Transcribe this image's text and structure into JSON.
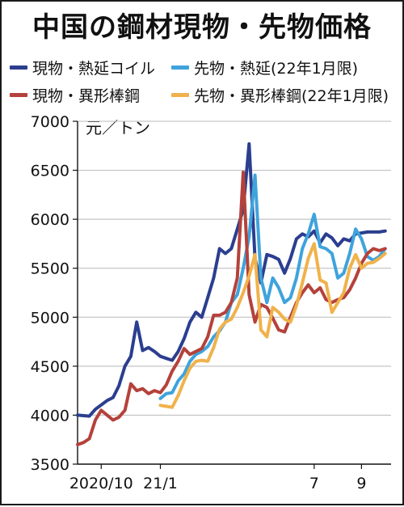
{
  "chart_data": {
    "type": "line",
    "title": "中国の鋼材現物・先物価格",
    "ylabel": "元／トン",
    "ylim": [
      3500,
      7000
    ],
    "yticks": [
      3500,
      4000,
      4500,
      5000,
      5500,
      6000,
      6500,
      7000
    ],
    "xlim": [
      0,
      53
    ],
    "xtick_labels": [
      {
        "x": 4,
        "label": "2020/10"
      },
      {
        "x": 14,
        "label": "21/1"
      },
      {
        "x": 40,
        "label": "7"
      },
      {
        "x": 48,
        "label": "9"
      }
    ],
    "grid": "horizontal",
    "legend": "top",
    "series": [
      {
        "name": "現物・熱延コイル",
        "color": "#2b3e8f",
        "x": [
          0,
          2,
          3,
          5,
          6,
          7,
          8,
          9,
          10,
          11,
          12,
          13,
          14,
          15,
          16,
          17,
          18,
          19,
          20,
          21,
          22,
          23,
          24,
          25,
          26,
          27,
          28,
          29,
          30,
          31,
          32,
          33,
          34,
          35,
          36,
          37,
          38,
          39,
          40,
          41,
          42,
          43,
          44,
          45,
          46,
          47,
          48,
          49,
          50,
          51,
          52
        ],
        "y": [
          4000,
          3990,
          4060,
          4150,
          4180,
          4300,
          4500,
          4600,
          4950,
          4660,
          4690,
          4650,
          4600,
          4580,
          4560,
          4650,
          4780,
          4950,
          5050,
          5000,
          5200,
          5400,
          5700,
          5650,
          5700,
          5900,
          6100,
          6770,
          5600,
          5350,
          5640,
          5620,
          5590,
          5450,
          5600,
          5800,
          5850,
          5820,
          5880,
          5760,
          5850,
          5810,
          5730,
          5800,
          5780,
          5850,
          5860,
          5870,
          5870,
          5870,
          5880
        ]
      },
      {
        "name": "先物・熱延(22年1月限)",
        "color": "#3fa3dc",
        "x": [
          14,
          15,
          16,
          17,
          18,
          19,
          20,
          21,
          22,
          23,
          24,
          25,
          26,
          27,
          28,
          29,
          30,
          31,
          32,
          33,
          34,
          35,
          36,
          37,
          38,
          39,
          40,
          41,
          42,
          43,
          44,
          45,
          46,
          47,
          48,
          49,
          50,
          51,
          52
        ],
        "y": [
          4170,
          4220,
          4230,
          4350,
          4420,
          4550,
          4620,
          4650,
          4700,
          4800,
          4860,
          4950,
          5150,
          5230,
          5500,
          5820,
          6450,
          5400,
          5150,
          5400,
          5300,
          5150,
          5200,
          5400,
          5700,
          5850,
          6050,
          5720,
          5700,
          5650,
          5400,
          5450,
          5650,
          5900,
          5800,
          5620,
          5580,
          5620,
          5700
        ]
      },
      {
        "name": "現物・異形棒鋼",
        "color": "#b4423b",
        "x": [
          0,
          1,
          2,
          3,
          4,
          5,
          6,
          7,
          8,
          9,
          10,
          11,
          12,
          13,
          14,
          15,
          16,
          17,
          18,
          19,
          20,
          21,
          22,
          23,
          24,
          25,
          26,
          27,
          28,
          29,
          30,
          31,
          32,
          33,
          34,
          35,
          36,
          37,
          38,
          39,
          40,
          41,
          42,
          43,
          44,
          45,
          46,
          47,
          48,
          49,
          50,
          51,
          52
        ],
        "y": [
          3700,
          3720,
          3760,
          3950,
          4050,
          4000,
          3950,
          3980,
          4050,
          4320,
          4250,
          4270,
          4220,
          4250,
          4230,
          4310,
          4450,
          4550,
          4680,
          4620,
          4650,
          4680,
          4800,
          5020,
          5020,
          5050,
          5150,
          5400,
          6480,
          5230,
          4950,
          5130,
          5100,
          4990,
          4870,
          4850,
          5000,
          5150,
          5250,
          5330,
          5250,
          5300,
          5180,
          5150,
          5180,
          5200,
          5280,
          5400,
          5550,
          5650,
          5700,
          5680,
          5700
        ]
      },
      {
        "name": "先物・異形棒鋼(22年1月限)",
        "color": "#f0b24b",
        "x": [
          14,
          15,
          16,
          17,
          18,
          19,
          20,
          21,
          22,
          23,
          24,
          25,
          26,
          27,
          28,
          29,
          30,
          31,
          32,
          33,
          34,
          35,
          36,
          37,
          38,
          39,
          40,
          41,
          42,
          43,
          44,
          45,
          46,
          47,
          48,
          49,
          50,
          51,
          52
        ],
        "y": [
          4100,
          4090,
          4080,
          4200,
          4350,
          4480,
          4550,
          4560,
          4550,
          4690,
          4880,
          4950,
          4980,
          5100,
          5250,
          5420,
          5640,
          4870,
          4800,
          5100,
          5050,
          4980,
          4950,
          5120,
          5350,
          5600,
          5750,
          5380,
          5350,
          5050,
          5150,
          5250,
          5500,
          5640,
          5500,
          5550,
          5560,
          5600,
          5650
        ]
      }
    ]
  }
}
